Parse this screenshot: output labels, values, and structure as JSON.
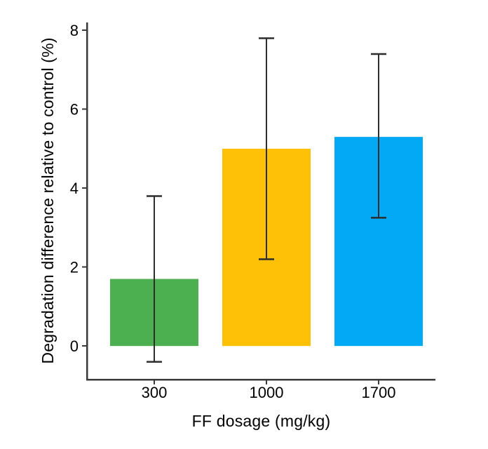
{
  "figure": {
    "background": "#ffffff"
  },
  "chart_data": {
    "type": "bar",
    "title": "",
    "xlabel": "FF dosage (mg/kg)",
    "ylabel": "Degradation difference relative to control (%)",
    "categories": [
      "300",
      "1000",
      "1700"
    ],
    "values": [
      1.7,
      5.0,
      5.3
    ],
    "error_low": [
      -0.4,
      2.2,
      3.25
    ],
    "error_high": [
      3.8,
      7.8,
      7.4
    ],
    "bar_colors": [
      "#4CAF50",
      "#FFC107",
      "#03A9F4"
    ],
    "yticks": [
      0,
      2,
      4,
      6,
      8
    ],
    "ylim": [
      -0.85,
      8.2
    ],
    "grid": false,
    "legend": false,
    "axis_color": "#3a3a3a",
    "errorbar_color": "#2d2d2d",
    "tick_label_color": "#000000",
    "tick_label_font_size": 22
  }
}
